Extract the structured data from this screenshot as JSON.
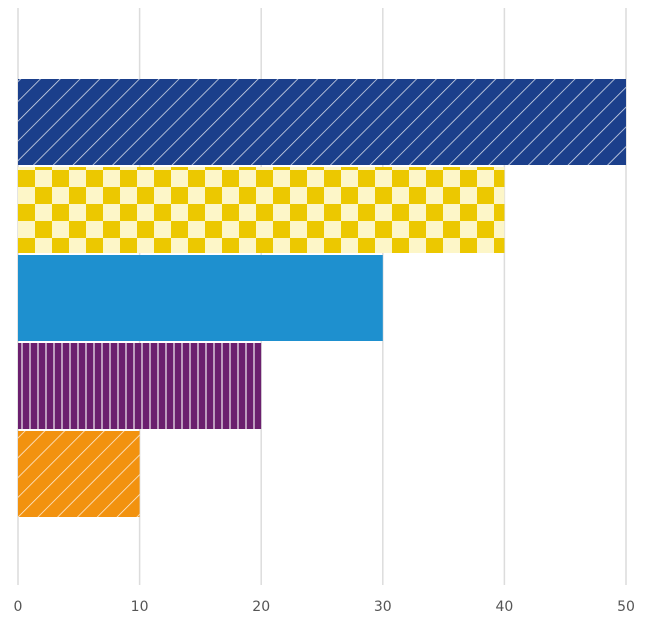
{
  "chart_data": {
    "type": "barh",
    "categories": [
      null,
      null,
      null,
      null,
      null
    ],
    "values": [
      50,
      40,
      30,
      20,
      10
    ],
    "colors": [
      "#1b3f8b",
      "#ecc800",
      "#1e90cf",
      "#6b1f6e",
      "#f2920f"
    ],
    "patterns": [
      "diagonal",
      "checker",
      "solid",
      "vertical",
      "diagonal"
    ],
    "xlim": [
      0,
      50
    ],
    "xticks": [
      0,
      10,
      20,
      30,
      40,
      50
    ],
    "grid": true
  }
}
